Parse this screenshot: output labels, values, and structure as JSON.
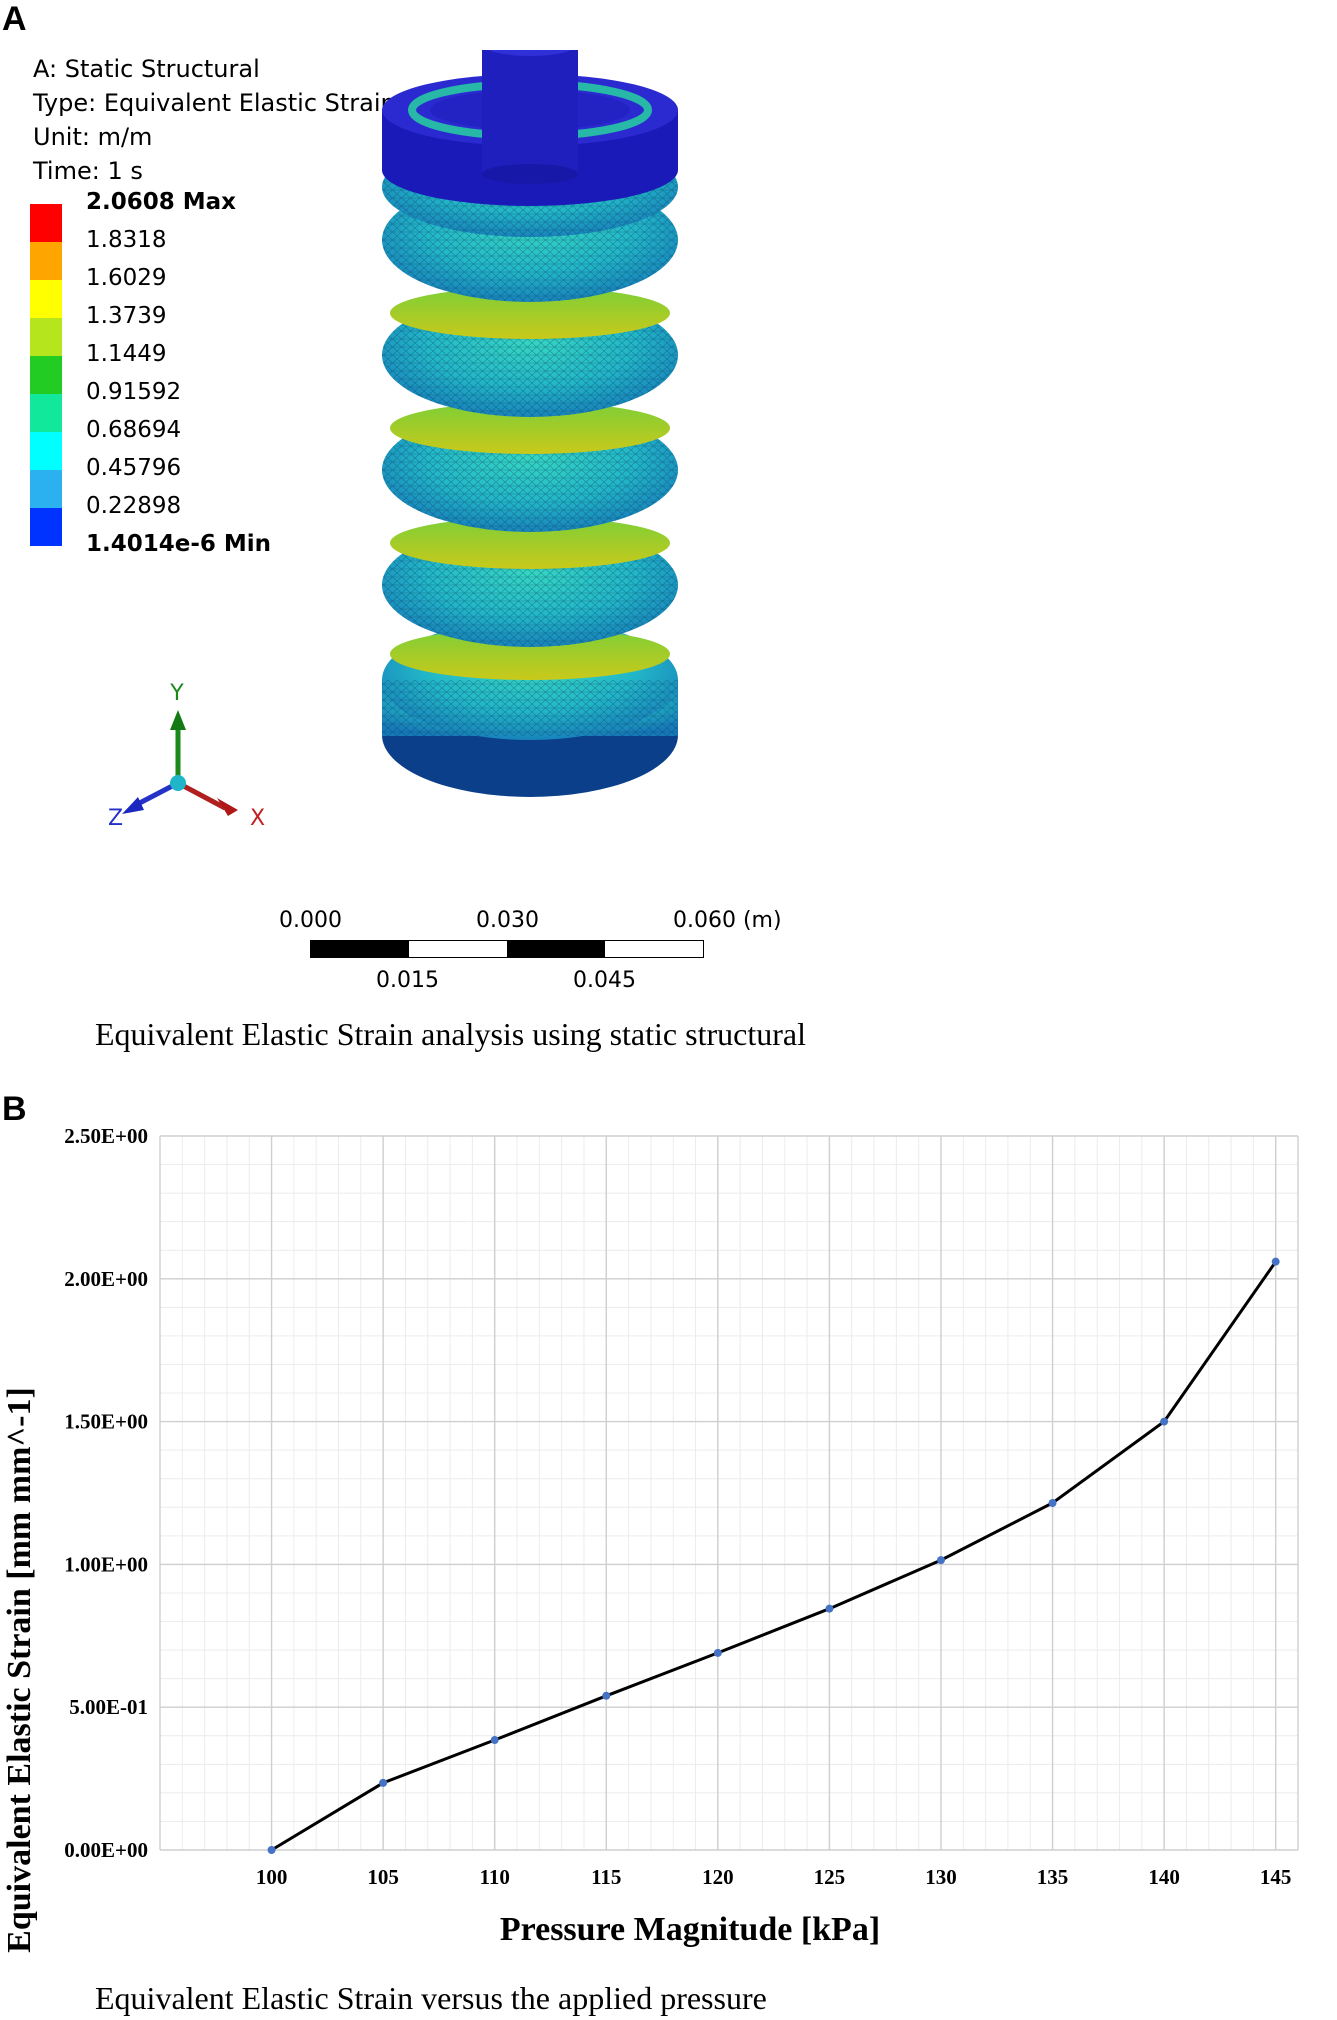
{
  "panel_a": {
    "letter": "A",
    "legend": {
      "lines": [
        "A: Static Structural",
        "Type: Equivalent Elastic Strain",
        "Unit: m/m",
        "Time: 1 s"
      ],
      "levels": [
        {
          "label": "2.0608 Max",
          "color": "#ff0000"
        },
        {
          "label": "1.8318",
          "color": "#ffa500"
        },
        {
          "label": "1.6029",
          "color": "#ffff00"
        },
        {
          "label": "1.3739",
          "color": "#b5e61d"
        },
        {
          "label": "1.1449",
          "color": "#22cc22"
        },
        {
          "label": "0.91592",
          "color": "#11e89b"
        },
        {
          "label": "0.68694",
          "color": "#00ffff"
        },
        {
          "label": "0.45796",
          "color": "#2bb0f0"
        },
        {
          "label": "0.22898",
          "color": "#0033ff"
        },
        {
          "label": "1.4014e-6 Min",
          "color": ""
        }
      ]
    },
    "triad": {
      "x": "X",
      "y": "Y",
      "z": "Z"
    },
    "scale_bar": {
      "top": [
        "0.000",
        "0.030",
        "0.060 (m)"
      ],
      "bottom": [
        "0.015",
        "0.045"
      ]
    },
    "caption": "Equivalent Elastic Strain analysis using static structural"
  },
  "panel_b": {
    "letter": "B",
    "caption": "Equivalent Elastic Strain versus the applied pressure"
  },
  "chart_data": {
    "type": "line",
    "title": "",
    "xlabel": "Pressure  Magnitude [kPa]",
    "ylabel": "Equivalent Elastic Strain  [mm mm^-1]",
    "x": [
      100,
      105,
      110,
      115,
      120,
      125,
      130,
      135,
      140,
      145
    ],
    "series": [
      {
        "values": [
          0.0,
          0.235,
          0.385,
          0.54,
          0.69,
          0.845,
          1.015,
          1.215,
          1.5,
          2.06
        ]
      }
    ],
    "x_ticks": [
      "100",
      "105",
      "110",
      "115",
      "120",
      "125",
      "130",
      "135",
      "140",
      "145"
    ],
    "y_ticks": [
      "0.00E+00",
      "5.00E-01",
      "1.00E+00",
      "1.50E+00",
      "2.00E+00",
      "2.50E+00"
    ],
    "xlim": [
      95,
      146
    ],
    "ylim": [
      0,
      2.5
    ],
    "grid": true,
    "line_color": "#000000",
    "marker_color": "#4472c4"
  }
}
